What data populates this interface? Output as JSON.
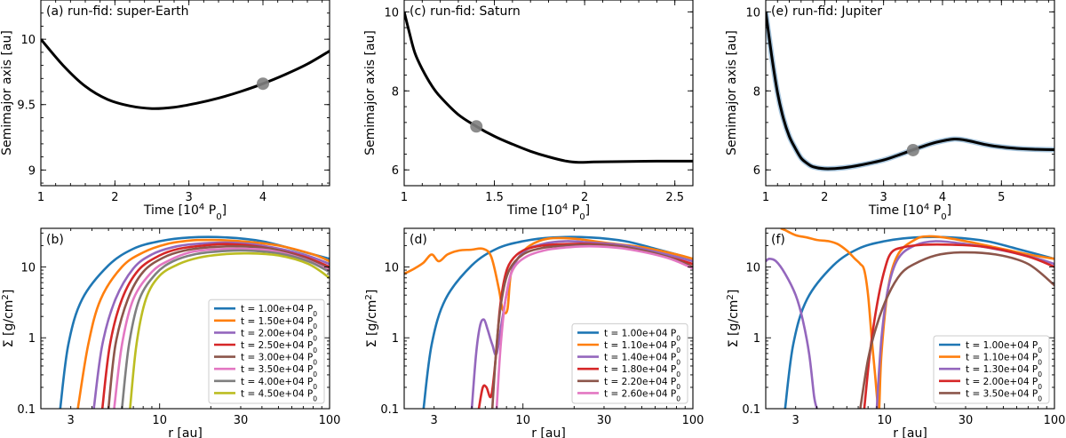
{
  "chart_data": [
    {
      "panel": "a",
      "type": "line",
      "scale": "linear",
      "title": "(a) run-fid: super-Earth",
      "xlabel": "Time [10⁴ P₀]",
      "ylabel": "Semimajor axis [au]",
      "xlim": [
        1,
        4.9
      ],
      "ylim": [
        8.88,
        10.3
      ],
      "xticks": [
        1,
        2,
        3,
        4
      ],
      "xtick_labels": [
        "1",
        "2",
        "3",
        "4"
      ],
      "yticks": [
        9,
        9.5,
        10
      ],
      "ytick_labels": [
        "9",
        "9.5",
        "10"
      ],
      "series": [
        {
          "name": "semimajor axis",
          "color": "#000000",
          "x": [
            1.0,
            1.3,
            1.6,
            1.9,
            2.2,
            2.5,
            2.8,
            3.1,
            3.4,
            3.7,
            4.0,
            4.3,
            4.6,
            4.9
          ],
          "y": [
            10.0,
            9.8,
            9.64,
            9.54,
            9.49,
            9.47,
            9.48,
            9.51,
            9.55,
            9.6,
            9.66,
            9.73,
            9.81,
            9.91
          ]
        }
      ],
      "markers": [
        {
          "x": 4.0,
          "y": 9.66,
          "color": "#7f7f7f"
        }
      ]
    },
    {
      "panel": "c",
      "type": "line",
      "scale": "linear",
      "title": "(c) run-fid: Saturn",
      "xlabel": "Time [10⁴ P₀]",
      "ylabel": "Semimajor axis [au]",
      "xlim": [
        1,
        2.6
      ],
      "ylim": [
        5.6,
        10.3
      ],
      "xticks": [
        1,
        1.5,
        2,
        2.5
      ],
      "xtick_labels": [
        "1",
        "1.5",
        "2",
        "2.5"
      ],
      "yticks": [
        6,
        8,
        10
      ],
      "ytick_labels": [
        "6",
        "8",
        "10"
      ],
      "series": [
        {
          "name": "semimajor axis",
          "color": "#000000",
          "x": [
            1.0,
            1.03,
            1.06,
            1.1,
            1.15,
            1.2,
            1.3,
            1.4,
            1.5,
            1.6,
            1.7,
            1.8,
            1.9,
            1.97,
            2.05,
            2.2,
            2.4,
            2.6
          ],
          "y": [
            10.0,
            9.45,
            8.95,
            8.55,
            8.15,
            7.85,
            7.4,
            7.1,
            6.85,
            6.65,
            6.47,
            6.33,
            6.22,
            6.19,
            6.2,
            6.21,
            6.22,
            6.22
          ]
        }
      ],
      "markers": [
        {
          "x": 1.4,
          "y": 7.1,
          "color": "#7f7f7f"
        }
      ]
    },
    {
      "panel": "e",
      "type": "line",
      "scale": "linear",
      "title": "(e)  run-fid: Jupiter",
      "xlabel": "Time [10⁴ P₀]",
      "ylabel": "Semimajor axis [au]",
      "xlim": [
        1,
        5.9
      ],
      "ylim": [
        5.6,
        10.3
      ],
      "xticks": [
        1,
        2,
        3,
        4,
        5
      ],
      "xtick_labels": [
        "1",
        "2",
        "3",
        "4",
        "5"
      ],
      "yticks": [
        6,
        8,
        10
      ],
      "ytick_labels": [
        "6",
        "8",
        "10"
      ],
      "series": [
        {
          "name": "semimajor axis (smoothed)",
          "color": "#aac8e0",
          "x": [
            1.0,
            1.1,
            1.2,
            1.3,
            1.4,
            1.5,
            1.6,
            1.7,
            1.8,
            2.0,
            2.3,
            2.6,
            3.0,
            3.3,
            3.6,
            3.9,
            4.2,
            4.4,
            4.8,
            5.2,
            5.6,
            5.9
          ],
          "y": [
            10.0,
            8.9,
            7.95,
            7.3,
            6.85,
            6.55,
            6.3,
            6.17,
            6.08,
            6.03,
            6.05,
            6.12,
            6.25,
            6.4,
            6.56,
            6.7,
            6.78,
            6.75,
            6.62,
            6.55,
            6.52,
            6.51
          ]
        },
        {
          "name": "semimajor axis",
          "color": "#000000",
          "x": [
            1.0,
            1.1,
            1.2,
            1.3,
            1.4,
            1.5,
            1.6,
            1.7,
            1.8,
            2.0,
            2.3,
            2.6,
            3.0,
            3.3,
            3.6,
            3.9,
            4.2,
            4.4,
            4.8,
            5.2,
            5.6,
            5.9
          ],
          "y": [
            10.0,
            8.9,
            7.95,
            7.3,
            6.85,
            6.55,
            6.3,
            6.17,
            6.08,
            6.03,
            6.05,
            6.12,
            6.25,
            6.4,
            6.56,
            6.7,
            6.78,
            6.75,
            6.62,
            6.55,
            6.52,
            6.51
          ]
        }
      ],
      "markers": [
        {
          "x": 3.5,
          "y": 6.5,
          "color": "#7f7f7f"
        }
      ]
    },
    {
      "panel": "b",
      "type": "line",
      "scale": "loglog",
      "title": "(b)",
      "xlabel": "r [au]",
      "ylabel": "Σ [g/cm²]",
      "xlim": [
        2.0,
        100
      ],
      "ylim": [
        0.1,
        35
      ],
      "xticks": [
        3,
        10,
        30,
        100
      ],
      "xtick_labels": [
        "3",
        "10",
        "30",
        "100"
      ],
      "yticks": [
        0.1,
        1,
        10
      ],
      "ytick_labels": [
        "0.1",
        "1",
        "10"
      ],
      "legend_entries": [
        "t = 1.00e+04 P₀",
        "t = 1.50e+04 P₀",
        "t = 2.00e+04 P₀",
        "t = 2.50e+04 P₀",
        "t = 3.00e+04 P₀",
        "t = 3.50e+04 P₀",
        "t = 4.00e+04 P₀",
        "t = 4.50e+04 P₀"
      ],
      "legend_colors": [
        "#1f77b4",
        "#ff7f0e",
        "#9467bd",
        "#d62728",
        "#8c564b",
        "#e377c2",
        "#7f7f7f",
        "#bcbd22"
      ],
      "legend_position": "lower-right",
      "series": [
        {
          "name": "t = 1.00e+04 P0",
          "color": "#1f77b4",
          "x": [
            2.6,
            2.9,
            3.5,
            5,
            7,
            10,
            15,
            25,
            40,
            60,
            100
          ],
          "y": [
            0.1,
            0.8,
            3.5,
            10.5,
            18,
            23,
            26,
            26,
            23,
            18,
            13
          ]
        },
        {
          "name": "t = 1.50e+04 P0",
          "color": "#ff7f0e",
          "x": [
            3.3,
            3.8,
            4.5,
            6,
            8,
            11,
            15,
            20,
            30,
            50,
            80,
            100
          ],
          "y": [
            0.1,
            0.8,
            3.5,
            10,
            16,
            21,
            23.5,
            24,
            23,
            20,
            15,
            12
          ]
        },
        {
          "name": "t = 2.00e+04 P0",
          "color": "#9467bd",
          "x": [
            4.1,
            4.6,
            5.5,
            7,
            9,
            12,
            16,
            25,
            40,
            70,
            100
          ],
          "y": [
            0.1,
            0.8,
            3.5,
            9.5,
            15,
            19,
            21,
            22,
            20,
            15,
            11
          ]
        },
        {
          "name": "t = 2.50e+04 P0",
          "color": "#d62728",
          "x": [
            4.6,
            5.1,
            6,
            7.5,
            10,
            13,
            18,
            25,
            40,
            70,
            100
          ],
          "y": [
            0.1,
            0.8,
            3.5,
            9,
            14.5,
            18,
            20,
            21,
            19,
            14,
            10
          ]
        },
        {
          "name": "t = 3.00e+04 P0",
          "color": "#8c564b",
          "x": [
            5.0,
            5.5,
            6.5,
            8,
            10.5,
            14,
            20,
            30,
            45,
            70,
            100
          ],
          "y": [
            0.1,
            0.8,
            3.5,
            8.5,
            13.5,
            17,
            19,
            19.5,
            18,
            13.5,
            9.5
          ]
        },
        {
          "name": "t = 3.50e+04 P0",
          "color": "#e377c2",
          "x": [
            5.4,
            6.0,
            7,
            9,
            11.5,
            15,
            20,
            30,
            45,
            70,
            100
          ],
          "y": [
            0.1,
            0.8,
            3.5,
            8.5,
            12.5,
            16,
            17.5,
            18,
            17,
            13,
            9
          ]
        },
        {
          "name": "t = 4.00e+04 P0",
          "color": "#7f7f7f",
          "x": [
            6.0,
            6.6,
            7.6,
            9.5,
            12,
            16,
            22,
            32,
            50,
            75,
            100
          ],
          "y": [
            0.1,
            0.8,
            3.5,
            8,
            12,
            15,
            16.5,
            17,
            15.5,
            12,
            8.5
          ]
        },
        {
          "name": "t = 4.50e+04 P0",
          "color": "#bcbd22",
          "x": [
            6.7,
            7.3,
            8.3,
            10,
            13,
            17,
            23,
            33,
            50,
            75,
            100
          ],
          "y": [
            0.1,
            0.8,
            3.5,
            7.5,
            11,
            13.5,
            15,
            15.5,
            14.5,
            11,
            7
          ]
        }
      ]
    },
    {
      "panel": "d",
      "type": "line",
      "scale": "loglog",
      "title": "(d)",
      "xlabel": "r [au]",
      "ylabel": "Σ [g/cm²]",
      "xlim": [
        2.0,
        100
      ],
      "ylim": [
        0.1,
        35
      ],
      "xticks": [
        3,
        10,
        30,
        100
      ],
      "xtick_labels": [
        "3",
        "10",
        "30",
        "100"
      ],
      "yticks": [
        0.1,
        1,
        10
      ],
      "ytick_labels": [
        "0.1",
        "1",
        "10"
      ],
      "legend_entries": [
        "t = 1.00e+04 P₀",
        "t = 1.10e+04 P₀",
        "t = 1.40e+04 P₀",
        "t = 1.80e+04 P₀",
        "t = 2.20e+04 P₀",
        "t = 2.60e+04 P₀"
      ],
      "legend_colors": [
        "#1f77b4",
        "#ff7f0e",
        "#9467bd",
        "#d62728",
        "#8c564b",
        "#e377c2"
      ],
      "legend_position": "lower-right",
      "series": [
        {
          "name": "t = 1.00e+04 P0",
          "color": "#1f77b4",
          "x": [
            2.6,
            2.9,
            3.5,
            5,
            7,
            10,
            15,
            25,
            40,
            60,
            100
          ],
          "y": [
            0.1,
            0.8,
            3.5,
            10.5,
            18,
            23,
            26,
            26,
            23,
            18,
            13
          ]
        },
        {
          "name": "t = 1.10e+04 P0",
          "color": "#ff7f0e",
          "x": [
            2.0,
            2.3,
            2.6,
            2.9,
            3.2,
            3.6,
            4.2,
            5,
            5.8,
            6.5,
            7.2,
            7.6,
            8.1,
            8.5,
            9.5,
            11,
            14,
            20,
            30,
            50,
            80,
            100
          ],
          "y": [
            8,
            9.5,
            11.5,
            15,
            12,
            15,
            17,
            17.5,
            18,
            14,
            5,
            2.5,
            2.5,
            8,
            14,
            20,
            25,
            25,
            22,
            19,
            15,
            13
          ]
        },
        {
          "name": "t = 1.40e+04 P0",
          "color": "#9467bd",
          "x": [
            5.0,
            5.3,
            5.6,
            5.9,
            6.2,
            6.6,
            7.0,
            7.6,
            8.5,
            10,
            13,
            18,
            25,
            40,
            70,
            100
          ],
          "y": [
            0.1,
            0.6,
            1.5,
            1.8,
            1.3,
            0.8,
            0.6,
            2,
            8,
            16,
            21,
            23,
            22,
            20,
            15,
            12
          ]
        },
        {
          "name": "t = 1.80e+04 P0",
          "color": "#d62728",
          "x": [
            5.5,
            5.8,
            6.1,
            6.5,
            6.9,
            7.3,
            7.8,
            8.5,
            10,
            13,
            18,
            25,
            40,
            70,
            100
          ],
          "y": [
            0.1,
            0.2,
            0.2,
            0.15,
            0.5,
            2.5,
            7,
            12,
            17,
            20,
            21,
            21,
            19,
            14,
            11
          ]
        },
        {
          "name": "t = 2.20e+04 P0",
          "color": "#8c564b",
          "x": [
            6.6,
            7.0,
            7.5,
            8.3,
            10,
            13,
            18,
            25,
            40,
            70,
            100
          ],
          "y": [
            0.1,
            0.8,
            3.5,
            9,
            15,
            18.5,
            20,
            20.5,
            19,
            14,
            10
          ]
        },
        {
          "name": "t = 2.60e+04 P0",
          "color": "#e377c2",
          "x": [
            7.0,
            7.4,
            7.9,
            8.7,
            10.5,
            14,
            19,
            26,
            40,
            70,
            100
          ],
          "y": [
            0.1,
            0.8,
            3.5,
            9,
            14,
            17.5,
            19,
            19.5,
            18,
            13.5,
            9.5
          ]
        }
      ]
    },
    {
      "panel": "f",
      "type": "line",
      "scale": "loglog",
      "title": "(f)",
      "xlabel": "r [au]",
      "ylabel": "Σ [g/cm²]",
      "xlim": [
        2.0,
        100
      ],
      "ylim": [
        0.1,
        35
      ],
      "xticks": [
        3,
        10,
        30,
        100
      ],
      "xtick_labels": [
        "3",
        "10",
        "30",
        "100"
      ],
      "yticks": [
        0.1,
        1,
        10
      ],
      "ytick_labels": [
        "0.1",
        "1",
        "10"
      ],
      "legend_entries": [
        "t = 1.00e+04 P₀",
        "t = 1.10e+04 P₀",
        "t = 1.30e+04 P₀",
        "t = 2.00e+04 P₀",
        "t = 3.50e+04 P₀"
      ],
      "legend_colors": [
        "#1f77b4",
        "#ff7f0e",
        "#9467bd",
        "#d62728",
        "#8c564b"
      ],
      "legend_position": "lower-right",
      "series": [
        {
          "name": "t = 1.00e+04 P0",
          "color": "#1f77b4",
          "x": [
            2.6,
            2.9,
            3.5,
            5,
            7,
            10,
            15,
            25,
            40,
            60,
            100
          ],
          "y": [
            0.1,
            0.8,
            3.5,
            10.5,
            18,
            23,
            26,
            26,
            23,
            18,
            13
          ]
        },
        {
          "name": "t = 1.10e+04 P0",
          "color": "#ff7f0e",
          "x": [
            2.45,
            2.6,
            3.0,
            3.5,
            4.0,
            4.7,
            5.3,
            6.0,
            6.7,
            7.2,
            7.6,
            8.0,
            8.4,
            8.8,
            9.1,
            9.3,
            9.6,
            10.5,
            12,
            15,
            18,
            25,
            40,
            70,
            100
          ],
          "y": [
            35,
            33,
            28,
            26,
            24,
            23,
            21,
            17,
            13,
            11,
            9,
            4,
            1,
            0.3,
            0.12,
            0.1,
            0.6,
            5,
            15,
            24,
            27,
            25,
            20,
            15,
            13
          ]
        },
        {
          "name": "t = 1.30e+04 P0",
          "color": "#9467bd",
          "x": [
            2.0,
            2.1,
            2.3,
            2.6,
            3.0,
            3.3,
            3.6,
            3.85,
            4.0
          ],
          "y": [
            12,
            13,
            12,
            8,
            4,
            1.8,
            0.6,
            0.15,
            0.1
          ]
        },
        {
          "name": "t = 1.30e+04 P0 (outer)",
          "color": "#9467bd",
          "x": [
            9.0,
            9.6,
            10.5,
            12,
            15,
            20,
            30,
            50,
            80,
            100
          ],
          "y": [
            0.1,
            1,
            5,
            13,
            20,
            23,
            21,
            17,
            13,
            11
          ]
        },
        {
          "name": "t = 2.00e+04 P0",
          "color": "#d62728",
          "x": [
            7.6,
            8.2,
            9,
            10,
            11,
            13,
            17,
            25,
            40,
            70,
            100
          ],
          "y": [
            0.1,
            0.6,
            2.8,
            9,
            16,
            19,
            20.5,
            20.5,
            19,
            14,
            10
          ]
        },
        {
          "name": "t = 3.50e+04 P0",
          "color": "#8c564b",
          "x": [
            7.2,
            8.0,
            9,
            10.5,
            12.5,
            15,
            20,
            28,
            45,
            70,
            100
          ],
          "y": [
            0.1,
            0.5,
            1.5,
            4,
            8,
            11,
            14.5,
            16,
            15,
            11,
            5.5
          ]
        }
      ]
    }
  ]
}
